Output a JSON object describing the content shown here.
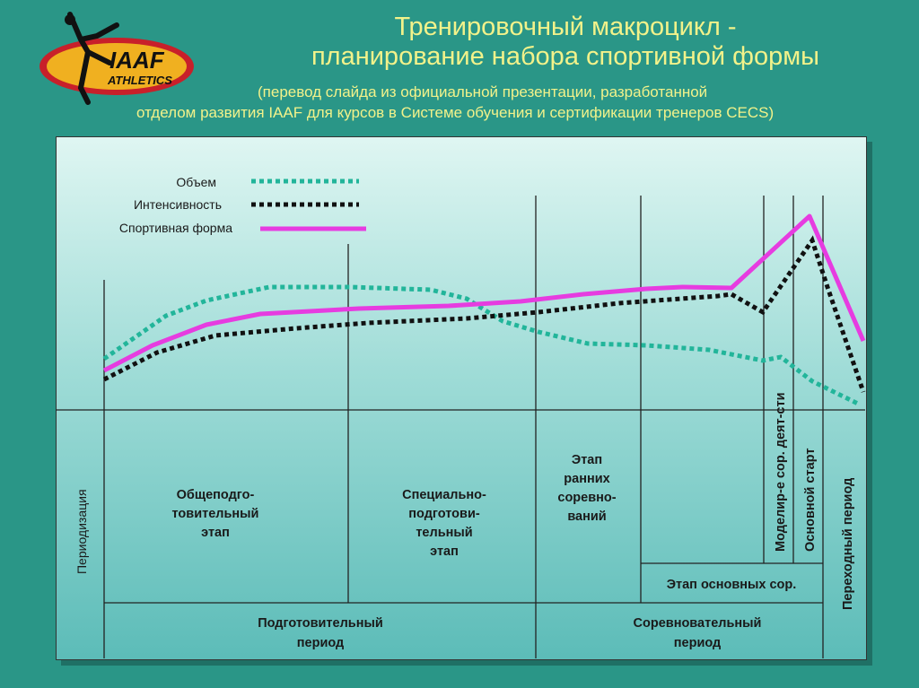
{
  "title": {
    "line1": "Тренировочный макроцикл -",
    "line2": "планирование набора спортивной формы"
  },
  "subtitle": {
    "line1": "(перевод слайда из официальной презентации, разработанной",
    "line2": "отделом развития IAAF для курсов в Системе обучения и сертификации тренеров CECS)"
  },
  "logo": {
    "text": "IAAF",
    "subtext": "ATHLETICS"
  },
  "legend": [
    {
      "label": "Объем",
      "color": "#22b59a",
      "style": "dotted"
    },
    {
      "label": "Интенсивность",
      "color": "#111111",
      "style": "dotted"
    },
    {
      "label": "Спортивная форма",
      "color": "#e63ce0",
      "style": "solid"
    }
  ],
  "phases": {
    "periodization": "Периодизация",
    "general_prep": [
      "Общеподго-",
      "товительный",
      "этап"
    ],
    "special_prep": [
      "Специально-",
      "подготови-",
      "тельный",
      "этап"
    ],
    "early_comp": [
      "Этап",
      "ранних",
      "соревно-",
      "ваний"
    ],
    "model": "Моделир-е сор. деят-сти",
    "main_start": "Основной старт",
    "transition": "Переходный период",
    "main_comp": "Этап основных сор.",
    "prep_period": [
      "Подготовительный",
      "период"
    ],
    "comp_period": [
      "Соревновательный",
      "период"
    ]
  }
}
